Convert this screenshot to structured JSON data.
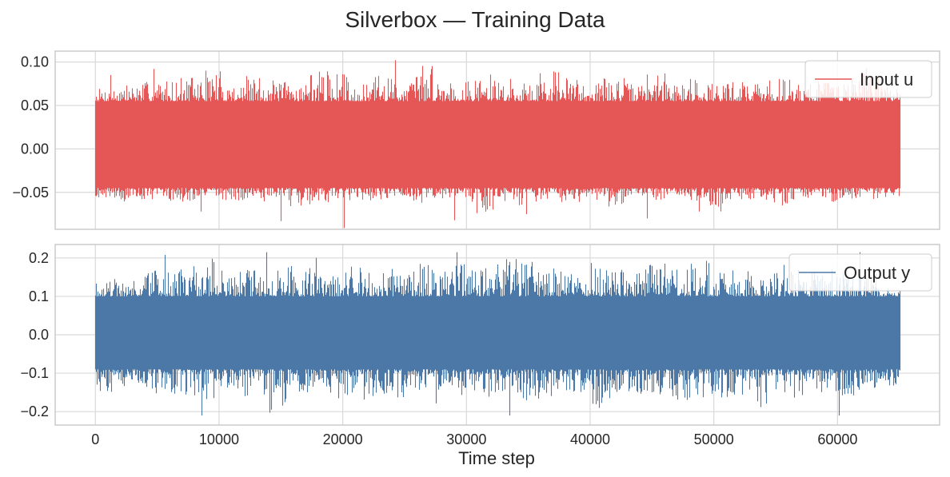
{
  "figure": {
    "title": "Silverbox — Training Data",
    "xlabel": "Time step"
  },
  "chart_data": [
    {
      "type": "line",
      "title": "",
      "xlabel": "",
      "ylabel": "",
      "xlim": [
        -3250,
        68250
      ],
      "ylim": [
        -0.0925,
        0.1125
      ],
      "xticks": [
        0,
        10000,
        20000,
        30000,
        40000,
        50000,
        60000
      ],
      "yticks": [
        -0.05,
        0.0,
        0.05,
        0.1
      ],
      "ytick_labels": [
        "−0.05",
        "0.00",
        "0.05",
        "0.10"
      ],
      "grid": true,
      "legend_position": "top-right",
      "series": [
        {
          "name": "Input u",
          "color": "#e45756",
          "x_range": [
            0,
            65000
          ],
          "n_points": 65000,
          "typical_band": [
            -0.045,
            0.055
          ],
          "envelope_min": [
            -0.056,
            -0.062,
            -0.058,
            -0.06,
            -0.063,
            -0.057,
            -0.06,
            -0.07,
            -0.055,
            -0.066,
            -0.065,
            -0.058,
            -0.06,
            -0.064,
            -0.056,
            -0.062,
            -0.057,
            -0.061,
            -0.075,
            -0.06,
            -0.066,
            -0.058,
            -0.062,
            -0.059,
            -0.068,
            -0.057,
            -0.063,
            -0.06,
            -0.064,
            -0.072,
            -0.058,
            -0.06,
            -0.065,
            -0.057,
            -0.061,
            -0.06,
            -0.059,
            -0.056
          ],
          "envelope_max": [
            0.07,
            0.075,
            0.078,
            0.08,
            0.083,
            0.092,
            0.076,
            0.084,
            0.079,
            0.078,
            0.09,
            0.088,
            0.074,
            0.085,
            0.078,
            0.1,
            0.082,
            0.079,
            0.086,
            0.081,
            0.077,
            0.093,
            0.083,
            0.079,
            0.083,
            0.076,
            0.088,
            0.078,
            0.084,
            0.077,
            0.08,
            0.079,
            0.082,
            0.078,
            0.085,
            0.082,
            0.087,
            0.072
          ],
          "spikes": [
            [
              24200,
              0.102
            ],
            [
              20100,
              -0.091
            ],
            [
              1200,
              0.085
            ],
            [
              4700,
              0.092
            ],
            [
              8500,
              -0.072
            ],
            [
              15000,
              -0.083
            ],
            [
              29000,
              -0.082
            ],
            [
              34800,
              -0.075
            ],
            [
              44600,
              -0.08
            ],
            [
              48800,
              -0.072
            ],
            [
              62300,
              0.093
            ]
          ]
        }
      ]
    },
    {
      "type": "line",
      "title": "",
      "xlabel": "Time step",
      "ylabel": "",
      "xlim": [
        -3250,
        68250
      ],
      "ylim": [
        -0.235,
        0.235
      ],
      "xticks": [
        0,
        10000,
        20000,
        30000,
        40000,
        50000,
        60000
      ],
      "xtick_labels": [
        "0",
        "10000",
        "20000",
        "30000",
        "40000",
        "50000",
        "60000"
      ],
      "yticks": [
        -0.2,
        -0.1,
        0.0,
        0.1,
        0.2
      ],
      "ytick_labels": [
        "−0.2",
        "−0.1",
        "0.0",
        "0.1",
        "0.2"
      ],
      "grid": true,
      "legend_position": "top-right",
      "series": [
        {
          "name": "Output y",
          "color": "#4c78a8",
          "x_range": [
            0,
            65000
          ],
          "n_points": 65000,
          "typical_band": [
            -0.09,
            0.1
          ],
          "envelope_min": [
            -0.15,
            -0.14,
            -0.17,
            -0.155,
            -0.16,
            -0.175,
            -0.15,
            -0.165,
            -0.21,
            -0.16,
            -0.155,
            -0.17,
            -0.18,
            -0.16,
            -0.165,
            -0.155,
            -0.19,
            -0.16,
            -0.17,
            -0.15,
            -0.175,
            -0.165,
            -0.16,
            -0.2,
            -0.17,
            -0.155,
            -0.16,
            -0.17,
            -0.165,
            -0.175,
            -0.16,
            -0.19,
            -0.155,
            -0.17,
            -0.16,
            -0.165,
            -0.15,
            -0.14
          ],
          "envelope_max": [
            0.15,
            0.14,
            0.175,
            0.17,
            0.18,
            0.2,
            0.165,
            0.17,
            0.175,
            0.2,
            0.19,
            0.17,
            0.18,
            0.165,
            0.175,
            0.19,
            0.17,
            0.185,
            0.175,
            0.2,
            0.21,
            0.18,
            0.17,
            0.2,
            0.175,
            0.18,
            0.19,
            0.17,
            0.195,
            0.175,
            0.18,
            0.165,
            0.185,
            0.17,
            0.175,
            0.18,
            0.16,
            0.12
          ],
          "spikes": [
            [
              5600,
              0.208
            ],
            [
              13800,
              0.215
            ],
            [
              29200,
              0.215
            ],
            [
              8600,
              -0.21
            ],
            [
              33500,
              -0.21
            ],
            [
              60100,
              -0.21
            ],
            [
              17800,
              0.2
            ],
            [
              61800,
              0.215
            ]
          ]
        }
      ]
    }
  ]
}
